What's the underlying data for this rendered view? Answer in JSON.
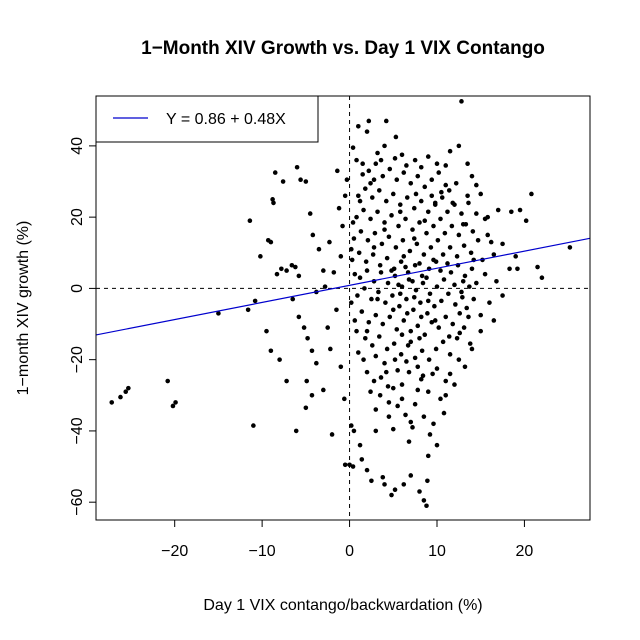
{
  "chart_data": {
    "type": "scatter",
    "title": "1−Month XIV Growth vs. Day 1 VIX Contango",
    "xlabel": "Day 1 VIX contango/backwardation (%)",
    "ylabel": "1−month XIV growth (%)",
    "xlim": [
      -29,
      27.5
    ],
    "ylim": [
      -65,
      54
    ],
    "xticks": [
      -20,
      -10,
      0,
      10,
      20
    ],
    "xtick_labels": [
      "−20",
      "−10",
      "0",
      "10",
      "20"
    ],
    "yticks": [
      -60,
      -40,
      -20,
      0,
      20,
      40
    ],
    "ytick_labels": [
      "−60",
      "−40",
      "−20",
      "0",
      "20",
      "40"
    ],
    "grid": false,
    "reference_lines": [
      {
        "orientation": "horizontal",
        "value": 0,
        "style": "dashed"
      },
      {
        "orientation": "vertical",
        "value": 0,
        "style": "dashed"
      }
    ],
    "regression": {
      "intercept": 0.86,
      "slope": 0.48,
      "color": "#0000cd",
      "label": "Y = 0.86 + 0.48X"
    },
    "legend": {
      "position": "top-left",
      "entries": [
        "Y = 0.86 + 0.48X"
      ]
    },
    "point_color": "#000000",
    "points": [
      [
        -27.2,
        -32.0
      ],
      [
        -26.2,
        -30.5
      ],
      [
        -25.6,
        -29.0
      ],
      [
        -25.3,
        -28.0
      ],
      [
        -20.8,
        -26.0
      ],
      [
        -20.2,
        -33.0
      ],
      [
        -19.9,
        -32.0
      ],
      [
        -15.0,
        -7.0
      ],
      [
        -11.6,
        -6.0
      ],
      [
        -11.0,
        -38.5
      ],
      [
        -11.4,
        19.0
      ],
      [
        -10.2,
        9.0
      ],
      [
        -9.5,
        -12.0
      ],
      [
        -10.8,
        -3.5
      ],
      [
        -9.0,
        -17.5
      ],
      [
        -8.0,
        -20.0
      ],
      [
        -7.2,
        -26.0
      ],
      [
        -8.5,
        32.5
      ],
      [
        -7.6,
        30.0
      ],
      [
        -8.8,
        25.0
      ],
      [
        -8.7,
        24.0
      ],
      [
        -9.3,
        13.5
      ],
      [
        -9.0,
        13.0
      ],
      [
        -8.3,
        4.0
      ],
      [
        -7.8,
        5.5
      ],
      [
        -7.2,
        5.0
      ],
      [
        -6.6,
        6.5
      ],
      [
        -6.2,
        6.0
      ],
      [
        -5.8,
        3.5
      ],
      [
        -6.0,
        34.0
      ],
      [
        -5.6,
        30.5
      ],
      [
        -5.0,
        30.0
      ],
      [
        -4.5,
        21.0
      ],
      [
        -4.2,
        15.0
      ],
      [
        -3.5,
        11.0
      ],
      [
        -6.5,
        -3.0
      ],
      [
        -5.8,
        -8.0
      ],
      [
        -5.2,
        -11.0
      ],
      [
        -4.8,
        -14.0
      ],
      [
        -4.3,
        -17.5
      ],
      [
        -3.8,
        -21.0
      ],
      [
        -4.9,
        -26.0
      ],
      [
        -4.3,
        -30.0
      ],
      [
        -3.0,
        -28.5
      ],
      [
        -5.0,
        -33.5
      ],
      [
        -6.1,
        -40.0
      ],
      [
        -2.0,
        -41.0
      ],
      [
        -2.2,
        -17.0
      ],
      [
        -2.5,
        -11.0
      ],
      [
        -1.5,
        -6.0
      ],
      [
        -2.8,
        0.5
      ],
      [
        -1.8,
        4.5
      ],
      [
        -1.0,
        9.0
      ],
      [
        -2.3,
        13.0
      ],
      [
        -0.8,
        17.5
      ],
      [
        -1.2,
        22.5
      ],
      [
        -0.5,
        26.0
      ],
      [
        -1.4,
        33.0
      ],
      [
        -0.3,
        30.5
      ],
      [
        -3.0,
        5.0
      ],
      [
        -3.8,
        -1.0
      ],
      [
        -1.0,
        -22.0
      ],
      [
        -0.6,
        -31.0
      ],
      [
        0.2,
        -38.5
      ],
      [
        0.5,
        -40.0
      ],
      [
        0.0,
        -49.5
      ],
      [
        -0.5,
        -49.5
      ],
      [
        0.4,
        -50.0
      ],
      [
        1.2,
        -44.0
      ],
      [
        0.4,
        39.5
      ],
      [
        0.8,
        36.0
      ],
      [
        1.0,
        45.5
      ],
      [
        2.0,
        44.0
      ],
      [
        2.2,
        47.0
      ],
      [
        1.5,
        32.0
      ],
      [
        2.8,
        30.5
      ],
      [
        4.2,
        47.0
      ],
      [
        5.3,
        42.5
      ],
      [
        4.0,
        40.0
      ],
      [
        12.8,
        52.5
      ],
      [
        12.5,
        40.0
      ],
      [
        11.5,
        38.5
      ],
      [
        13.5,
        35.0
      ],
      [
        14.0,
        31.5
      ],
      [
        15.0,
        26.5
      ],
      [
        15.8,
        20.0
      ],
      [
        17.0,
        22.0
      ],
      [
        18.5,
        21.5
      ],
      [
        19.5,
        22.0
      ],
      [
        20.8,
        26.5
      ],
      [
        20.2,
        19.0
      ],
      [
        19.0,
        9.0
      ],
      [
        18.3,
        5.5
      ],
      [
        19.2,
        5.5
      ],
      [
        21.5,
        6.0
      ],
      [
        22.0,
        3.0
      ],
      [
        25.2,
        11.5
      ],
      [
        17.5,
        -2.0
      ],
      [
        16.5,
        -9.0
      ],
      [
        15.0,
        -12.0
      ],
      [
        14.0,
        -17.0
      ],
      [
        13.2,
        -22.0
      ],
      [
        12.0,
        -27.0
      ],
      [
        11.0,
        -30.0
      ],
      [
        10.8,
        -35.0
      ],
      [
        10.0,
        -44.0
      ],
      [
        9.0,
        -47.0
      ],
      [
        8.9,
        -54.0
      ],
      [
        8.5,
        -59.5
      ],
      [
        8.0,
        -57.0
      ],
      [
        8.8,
        -61.0
      ],
      [
        7.0,
        -52.5
      ],
      [
        6.2,
        -55.0
      ],
      [
        5.2,
        -56.5
      ],
      [
        4.8,
        -58.0
      ],
      [
        4.0,
        -55.0
      ],
      [
        3.8,
        -53.0
      ],
      [
        2.5,
        -54.0
      ],
      [
        2.0,
        -51.0
      ],
      [
        1.4,
        -48.0
      ],
      [
        3.0,
        -40.0
      ],
      [
        4.5,
        -36.0
      ],
      [
        5.5,
        -33.0
      ],
      [
        6.4,
        -35.5
      ],
      [
        7.2,
        -39.0
      ],
      [
        6.8,
        -43.0
      ],
      [
        9.6,
        -38.0
      ],
      [
        9.2,
        -41.0
      ],
      [
        10.4,
        -31.0
      ],
      [
        3.5,
        -30.0
      ],
      [
        2.8,
        -26.0
      ],
      [
        5.0,
        -28.0
      ],
      [
        6.0,
        -27.0
      ],
      [
        7.8,
        -28.5
      ],
      [
        8.2,
        -25.5
      ],
      [
        9.5,
        -24.0
      ],
      [
        11.5,
        -24.0
      ],
      [
        1.0,
        -18.0
      ],
      [
        1.8,
        -14.0
      ],
      [
        2.6,
        -16.0
      ],
      [
        3.4,
        -13.5
      ],
      [
        4.3,
        -17.0
      ],
      [
        5.1,
        -15.5
      ],
      [
        5.9,
        -18.5
      ],
      [
        6.7,
        -16.0
      ],
      [
        7.5,
        -19.5
      ],
      [
        8.3,
        -17.5
      ],
      [
        9.1,
        -20.0
      ],
      [
        9.9,
        -17.0
      ],
      [
        10.7,
        -15.0
      ],
      [
        11.5,
        -18.5
      ],
      [
        12.3,
        -14.0
      ],
      [
        13.1,
        -11.0
      ],
      [
        0.6,
        -9.0
      ],
      [
        1.4,
        -6.5
      ],
      [
        2.2,
        -9.5
      ],
      [
        3.0,
        -7.5
      ],
      [
        3.8,
        -10.0
      ],
      [
        4.6,
        -8.0
      ],
      [
        5.4,
        -11.5
      ],
      [
        6.2,
        -9.0
      ],
      [
        7.0,
        -12.0
      ],
      [
        7.8,
        -10.5
      ],
      [
        8.6,
        -13.0
      ],
      [
        9.4,
        -9.5
      ],
      [
        10.2,
        -11.0
      ],
      [
        11.0,
        -8.0
      ],
      [
        11.8,
        -10.0
      ],
      [
        12.6,
        -7.0
      ],
      [
        13.4,
        -5.5
      ],
      [
        14.2,
        -3.0
      ],
      [
        0.9,
        -2.0
      ],
      [
        1.7,
        0.0
      ],
      [
        2.5,
        -3.0
      ],
      [
        3.3,
        -1.0
      ],
      [
        4.1,
        -4.0
      ],
      [
        4.9,
        -2.0
      ],
      [
        5.7,
        -5.0
      ],
      [
        6.5,
        -3.0
      ],
      [
        7.3,
        -6.0
      ],
      [
        8.1,
        -4.0
      ],
      [
        8.9,
        -7.0
      ],
      [
        9.7,
        -5.0
      ],
      [
        10.5,
        -3.5
      ],
      [
        11.3,
        -1.5
      ],
      [
        12.1,
        -4.5
      ],
      [
        12.9,
        -2.5
      ],
      [
        13.7,
        0.5
      ],
      [
        14.5,
        1.5
      ],
      [
        1.2,
        3.0
      ],
      [
        2.0,
        5.0
      ],
      [
        2.8,
        2.0
      ],
      [
        3.6,
        4.5
      ],
      [
        4.4,
        1.5
      ],
      [
        5.2,
        3.5
      ],
      [
        6.0,
        0.5
      ],
      [
        6.8,
        2.5
      ],
      [
        7.6,
        -0.5
      ],
      [
        8.4,
        1.5
      ],
      [
        9.2,
        -1.5
      ],
      [
        10.0,
        0.5
      ],
      [
        10.8,
        2.5
      ],
      [
        11.6,
        4.5
      ],
      [
        12.4,
        6.5
      ],
      [
        13.2,
        3.5
      ],
      [
        14.0,
        5.5
      ],
      [
        15.2,
        8.0
      ],
      [
        0.3,
        8.0
      ],
      [
        1.1,
        10.0
      ],
      [
        1.9,
        7.5
      ],
      [
        2.7,
        9.5
      ],
      [
        3.5,
        6.5
      ],
      [
        4.3,
        8.5
      ],
      [
        5.1,
        5.5
      ],
      [
        5.9,
        7.5
      ],
      [
        6.7,
        4.5
      ],
      [
        7.5,
        6.5
      ],
      [
        8.3,
        3.5
      ],
      [
        9.1,
        5.5
      ],
      [
        9.9,
        7.5
      ],
      [
        10.7,
        9.5
      ],
      [
        11.5,
        11.5
      ],
      [
        12.3,
        9.0
      ],
      [
        13.1,
        12.0
      ],
      [
        13.9,
        10.0
      ],
      [
        14.7,
        13.5
      ],
      [
        16.2,
        13.0
      ],
      [
        0.5,
        14.0
      ],
      [
        1.3,
        16.0
      ],
      [
        2.1,
        13.5
      ],
      [
        2.9,
        15.5
      ],
      [
        3.7,
        12.5
      ],
      [
        4.5,
        14.5
      ],
      [
        5.3,
        11.5
      ],
      [
        6.1,
        13.5
      ],
      [
        6.9,
        10.5
      ],
      [
        7.7,
        12.5
      ],
      [
        8.5,
        9.5
      ],
      [
        9.3,
        11.5
      ],
      [
        10.1,
        13.5
      ],
      [
        10.9,
        15.5
      ],
      [
        11.7,
        17.5
      ],
      [
        12.5,
        15.0
      ],
      [
        13.3,
        18.0
      ],
      [
        14.1,
        16.0
      ],
      [
        15.5,
        19.5
      ],
      [
        0.8,
        20.0
      ],
      [
        1.6,
        22.0
      ],
      [
        2.4,
        19.5
      ],
      [
        3.2,
        21.5
      ],
      [
        4.0,
        18.5
      ],
      [
        4.8,
        20.5
      ],
      [
        5.6,
        17.5
      ],
      [
        6.4,
        19.5
      ],
      [
        7.2,
        16.5
      ],
      [
        8.0,
        18.5
      ],
      [
        8.8,
        15.5
      ],
      [
        9.6,
        17.5
      ],
      [
        10.4,
        19.5
      ],
      [
        11.2,
        21.5
      ],
      [
        12.0,
        23.5
      ],
      [
        12.8,
        21.0
      ],
      [
        13.6,
        24.0
      ],
      [
        1.0,
        26.0
      ],
      [
        1.8,
        28.0
      ],
      [
        2.6,
        25.5
      ],
      [
        3.4,
        27.5
      ],
      [
        4.2,
        24.5
      ],
      [
        5.0,
        26.5
      ],
      [
        5.8,
        23.5
      ],
      [
        6.6,
        25.5
      ],
      [
        7.4,
        22.5
      ],
      [
        8.2,
        24.5
      ],
      [
        9.0,
        21.5
      ],
      [
        9.8,
        23.5
      ],
      [
        10.6,
        25.5
      ],
      [
        11.4,
        27.5
      ],
      [
        12.2,
        29.5
      ],
      [
        2.2,
        33.0
      ],
      [
        3.0,
        35.0
      ],
      [
        3.8,
        31.5
      ],
      [
        4.6,
        33.5
      ],
      [
        5.4,
        30.5
      ],
      [
        6.2,
        32.5
      ],
      [
        7.0,
        29.5
      ],
      [
        7.8,
        31.5
      ],
      [
        8.6,
        28.5
      ],
      [
        9.4,
        30.5
      ],
      [
        10.2,
        32.5
      ],
      [
        11.0,
        34.5
      ],
      [
        9.0,
        37.0
      ],
      [
        7.5,
        36.0
      ],
      [
        6.0,
        37.5
      ],
      [
        3.2,
        38.0
      ],
      [
        1.5,
        35.0
      ],
      [
        4.8,
        5.0
      ],
      [
        5.6,
        1.0
      ],
      [
        6.4,
        6.0
      ],
      [
        7.2,
        2.0
      ],
      [
        8.0,
        7.0
      ],
      [
        8.8,
        3.0
      ],
      [
        9.6,
        8.0
      ],
      [
        5.0,
        -6.0
      ],
      [
        5.8,
        -1.5
      ],
      [
        6.6,
        -7.0
      ],
      [
        7.4,
        -2.5
      ],
      [
        8.2,
        -8.0
      ],
      [
        9.0,
        -3.5
      ],
      [
        9.8,
        -9.0
      ],
      [
        6.0,
        -13.0
      ],
      [
        7.0,
        -15.0
      ],
      [
        8.0,
        -14.0
      ],
      [
        6.5,
        -20.5
      ],
      [
        7.8,
        -22.0
      ],
      [
        5.5,
        -23.0
      ],
      [
        4.0,
        -21.0
      ],
      [
        2.0,
        -23.5
      ],
      [
        3.0,
        -34.0
      ],
      [
        4.5,
        -32.0
      ],
      [
        6.0,
        -31.0
      ],
      [
        7.5,
        -32.5
      ],
      [
        9.0,
        -29.0
      ],
      [
        8.5,
        -36.0
      ],
      [
        7.0,
        -37.5
      ],
      [
        5.0,
        -39.5
      ],
      [
        11.0,
        -26.0
      ],
      [
        12.5,
        -20.0
      ],
      [
        13.8,
        -15.5
      ],
      [
        15.0,
        -7.5
      ],
      [
        16.0,
        -4.0
      ],
      [
        16.8,
        2.0
      ],
      [
        15.5,
        4.0
      ],
      [
        16.5,
        9.5
      ],
      [
        17.5,
        12.5
      ],
      [
        15.8,
        15.0
      ],
      [
        14.5,
        21.0
      ],
      [
        13.5,
        26.0
      ],
      [
        14.5,
        29.0
      ],
      [
        10.5,
        27.0
      ],
      [
        10.0,
        35.0
      ],
      [
        8.2,
        34.0
      ],
      [
        6.5,
        34.5
      ],
      [
        5.2,
        36.5
      ],
      [
        3.6,
        36.0
      ],
      [
        2.4,
        29.5
      ],
      [
        1.2,
        24.5
      ],
      [
        0.4,
        18.5
      ],
      [
        0.2,
        11.0
      ],
      [
        0.6,
        4.0
      ],
      [
        0.2,
        -4.0
      ],
      [
        0.8,
        -12.0
      ],
      [
        1.6,
        -20.0
      ],
      [
        2.4,
        -29.0
      ],
      [
        3.6,
        -25.0
      ],
      [
        4.4,
        -27.5
      ],
      [
        2.0,
        -12.0
      ],
      [
        3.0,
        -19.0
      ],
      [
        4.2,
        -23.5
      ],
      [
        6.2,
        9.0
      ],
      [
        7.4,
        14.0
      ],
      [
        8.6,
        19.0
      ],
      [
        9.8,
        24.0
      ],
      [
        11.0,
        29.0
      ],
      [
        10.4,
        5.0
      ],
      [
        11.2,
        7.0
      ],
      [
        12.0,
        1.0
      ],
      [
        12.8,
        -1.0
      ],
      [
        13.6,
        -8.0
      ],
      [
        12.6,
        -12.5
      ],
      [
        11.4,
        -13.5
      ],
      [
        10.0,
        -22.5
      ],
      [
        8.4,
        -24.5
      ],
      [
        6.8,
        -23.5
      ],
      [
        5.2,
        -20.0
      ],
      [
        3.2,
        -3.0
      ],
      [
        2.8,
        11.5
      ],
      [
        4.0,
        16.5
      ],
      [
        5.8,
        21.5
      ],
      [
        7.6,
        26.5
      ],
      [
        9.4,
        26.0
      ],
      [
        11.8,
        24.0
      ],
      [
        13.0,
        18.0
      ],
      [
        14.2,
        8.0
      ],
      [
        13.0,
        2.0
      ]
    ]
  }
}
